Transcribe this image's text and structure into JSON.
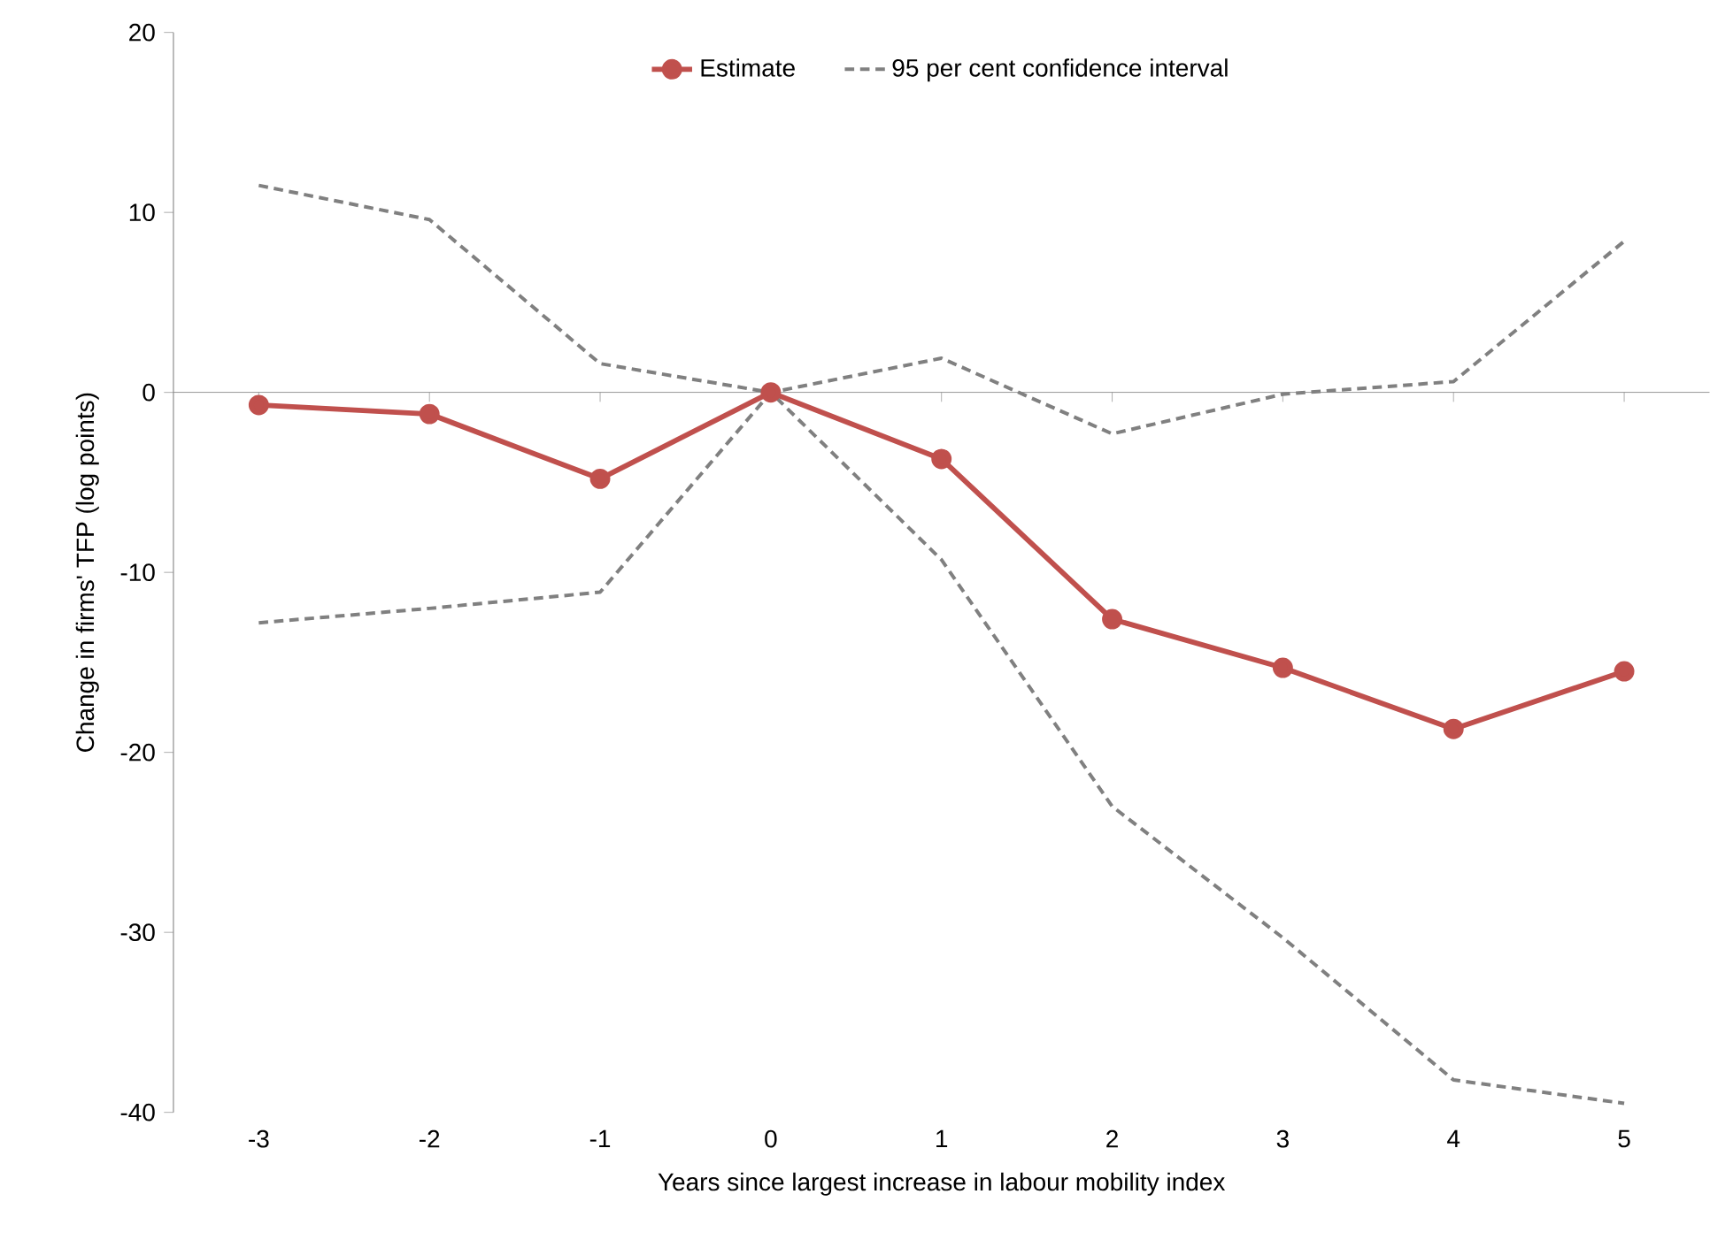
{
  "chart_data": {
    "type": "line",
    "xlabel": "Years since largest increase in labour mobility index",
    "ylabel": "Change in firms' TFP (log points)",
    "categories": [
      "-3",
      "-2",
      "-1",
      "0",
      "1",
      "2",
      "3",
      "4",
      "5"
    ],
    "ylim": [
      -40,
      20
    ],
    "yticks": [
      -40,
      -30,
      -20,
      -10,
      0,
      10,
      20
    ],
    "legend": "top",
    "series": [
      {
        "name": "Estimate",
        "color": "#c0504d",
        "marker": "circle",
        "line_style": "solid",
        "values": [
          -0.7,
          -1.2,
          -4.8,
          0,
          -3.7,
          -12.6,
          -15.3,
          -18.7,
          -15.5
        ]
      },
      {
        "name": "95 per cent confidence interval",
        "color": "#808080",
        "marker": "none",
        "line_style": "dashed",
        "values": [
          11.5,
          9.6,
          1.6,
          0,
          1.9,
          -2.3,
          -0.1,
          0.6,
          8.4
        ]
      },
      {
        "color": "#808080",
        "marker": "none",
        "line_style": "dashed",
        "values": [
          -12.8,
          -12.0,
          -11.1,
          0,
          -9.3,
          -23.0,
          -30.3,
          -38.2,
          -39.5
        ]
      }
    ]
  }
}
